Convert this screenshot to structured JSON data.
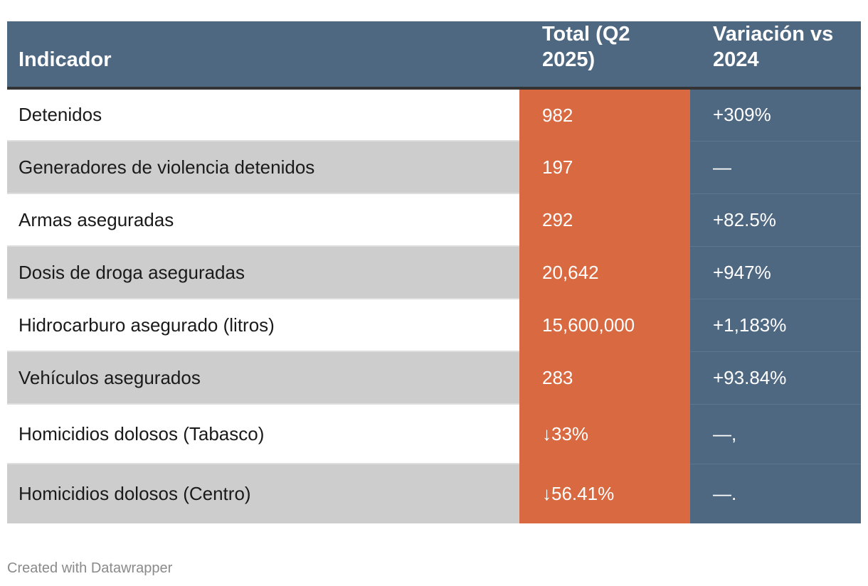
{
  "chart_data": {
    "type": "table",
    "columns": [
      "Indicador",
      "Total (Q2 2025)",
      "Variación vs 2024"
    ],
    "rows": [
      {
        "indicador": "Detenidos",
        "total": "982",
        "variacion": "+309%"
      },
      {
        "indicador": "Generadores de violencia detenidos",
        "total": "197",
        "variacion": "—"
      },
      {
        "indicador": "Armas aseguradas",
        "total": "292",
        "variacion": "+82.5%"
      },
      {
        "indicador": "Dosis de droga aseguradas",
        "total": "20,642",
        "variacion": "+947%"
      },
      {
        "indicador": "Hidrocarburo asegurado (litros)",
        "total": "15,600,000",
        "variacion": "+1,183%"
      },
      {
        "indicador": "Vehículos asegurados",
        "total": "283",
        "variacion": "+93.84%"
      },
      {
        "indicador": "Homicidios dolosos (Tabasco)",
        "total": "↓33%",
        "variacion": "—,"
      },
      {
        "indicador": "Homicidios dolosos (Centro)",
        "total": "↓56.41%",
        "variacion": "—."
      }
    ],
    "colors": {
      "header_bg": "#4f6882",
      "total_col_bg": "#d96940",
      "variation_col_bg": "#4f6882",
      "row_alt_bg": "#cdcdcd",
      "row_bg": "#ffffff"
    }
  },
  "footer": {
    "credit": "Created with Datawrapper"
  }
}
